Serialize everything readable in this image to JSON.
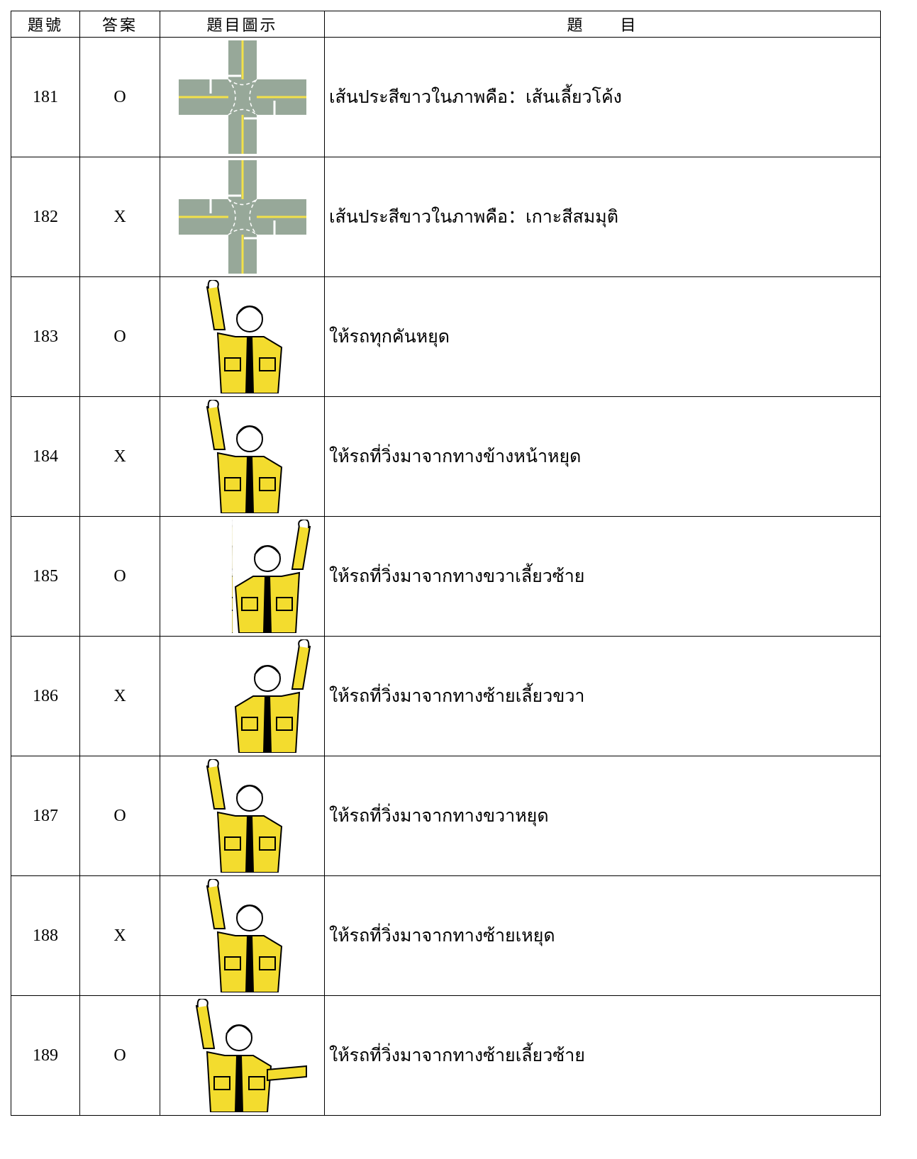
{
  "table": {
    "header": [
      "題號",
      "答案",
      "題目圖示",
      "題　　目"
    ],
    "rows": [
      [
        "181",
        "O",
        "เส้นประสีขาวในภาพคือ：เส้นเลี้ยวโค้ง"
      ],
      [
        "182",
        "X",
        "เส้นประสีขาวในภาพคือ：เกาะสีสมมุติ"
      ],
      [
        "183",
        "O",
        "ให้รถทุกคันหยุด"
      ],
      [
        "184",
        "X",
        "ให้รถที่วิ่งมาจากทางข้างหน้าหยุด"
      ],
      [
        "185",
        "O",
        "ให้รถที่วิ่งมาจากทางขวาเลี้ยวซ้าย"
      ],
      [
        "186",
        "X",
        "ให้รถที่วิ่งมาจากทางซ้ายเลี้ยวขวา"
      ],
      [
        "187",
        "O",
        "ให้รถที่วิ่งมาจากทางขวาหยุด"
      ],
      [
        "188",
        "X",
        "ให้รถที่วิ่งมาจากทางซ้ายเหยุด"
      ],
      [
        "189",
        "O",
        "ให้รถที่วิ่งมาจากทางซ้ายเลี้ยวซ้าย"
      ]
    ]
  }
}
